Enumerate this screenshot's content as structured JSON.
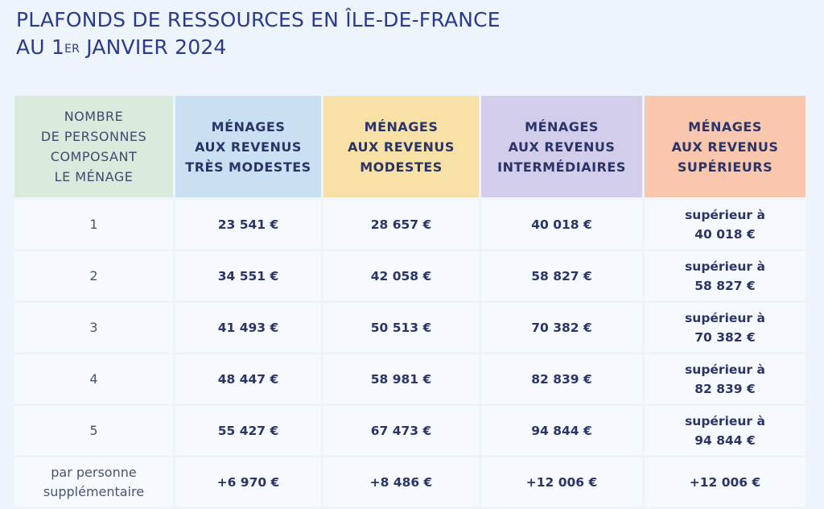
{
  "title": {
    "line1": "PLAFONDS DE RESSOURCES EN ÎLE-DE-FRANCE",
    "line2_pre": "AU 1",
    "line2_sup": "ER",
    "line2_post": " JANVIER 2024"
  },
  "colors": {
    "col0": "#d9ebdd",
    "col1": "#c8e0f1",
    "col2": "#f8e1a6",
    "col3": "#d2cdea",
    "col4": "#f8c7ad"
  },
  "headers": [
    [
      "NOMBRE",
      "DE PERSONNES",
      "COMPOSANT",
      "LE MÉNAGE"
    ],
    [
      "MÉNAGES",
      "AUX REVENUS",
      "TRÈS MODESTES"
    ],
    [
      "MÉNAGES",
      "AUX REVENUS",
      "MODESTES"
    ],
    [
      "MÉNAGES",
      "AUX REVENUS",
      "INTERMÉDIAIRES"
    ],
    [
      "MÉNAGES",
      "AUX REVENUS",
      "SUPÉRIEURS"
    ]
  ],
  "rows": [
    {
      "persons": "1",
      "tres_modestes": "23 541 €",
      "modestes": "28 657 €",
      "intermediaires": "40 018 €",
      "superieurs": [
        "supérieur à",
        "40 018 €"
      ]
    },
    {
      "persons": "2",
      "tres_modestes": "34 551 €",
      "modestes": "42 058 €",
      "intermediaires": "58 827 €",
      "superieurs": [
        "supérieur à",
        "58 827 €"
      ]
    },
    {
      "persons": "3",
      "tres_modestes": "41 493 €",
      "modestes": "50 513 €",
      "intermediaires": "70 382 €",
      "superieurs": [
        "supérieur à",
        "70 382 €"
      ]
    },
    {
      "persons": "4",
      "tres_modestes": "48 447 €",
      "modestes": "58 981 €",
      "intermediaires": "82 839 €",
      "superieurs": [
        "supérieur à",
        "82 839 €"
      ]
    },
    {
      "persons": "5",
      "tres_modestes": "55 427 €",
      "modestes": "67 473 €",
      "intermediaires": "94 844 €",
      "superieurs": [
        "supérieur à",
        "94 844 €"
      ]
    }
  ],
  "extra_row": {
    "label": [
      "par personne",
      "supplémentaire"
    ],
    "tres_modestes": "+6 970 €",
    "modestes": "+8 486 €",
    "intermediaires": "+12 006 €",
    "superieurs": "+12 006 €"
  }
}
